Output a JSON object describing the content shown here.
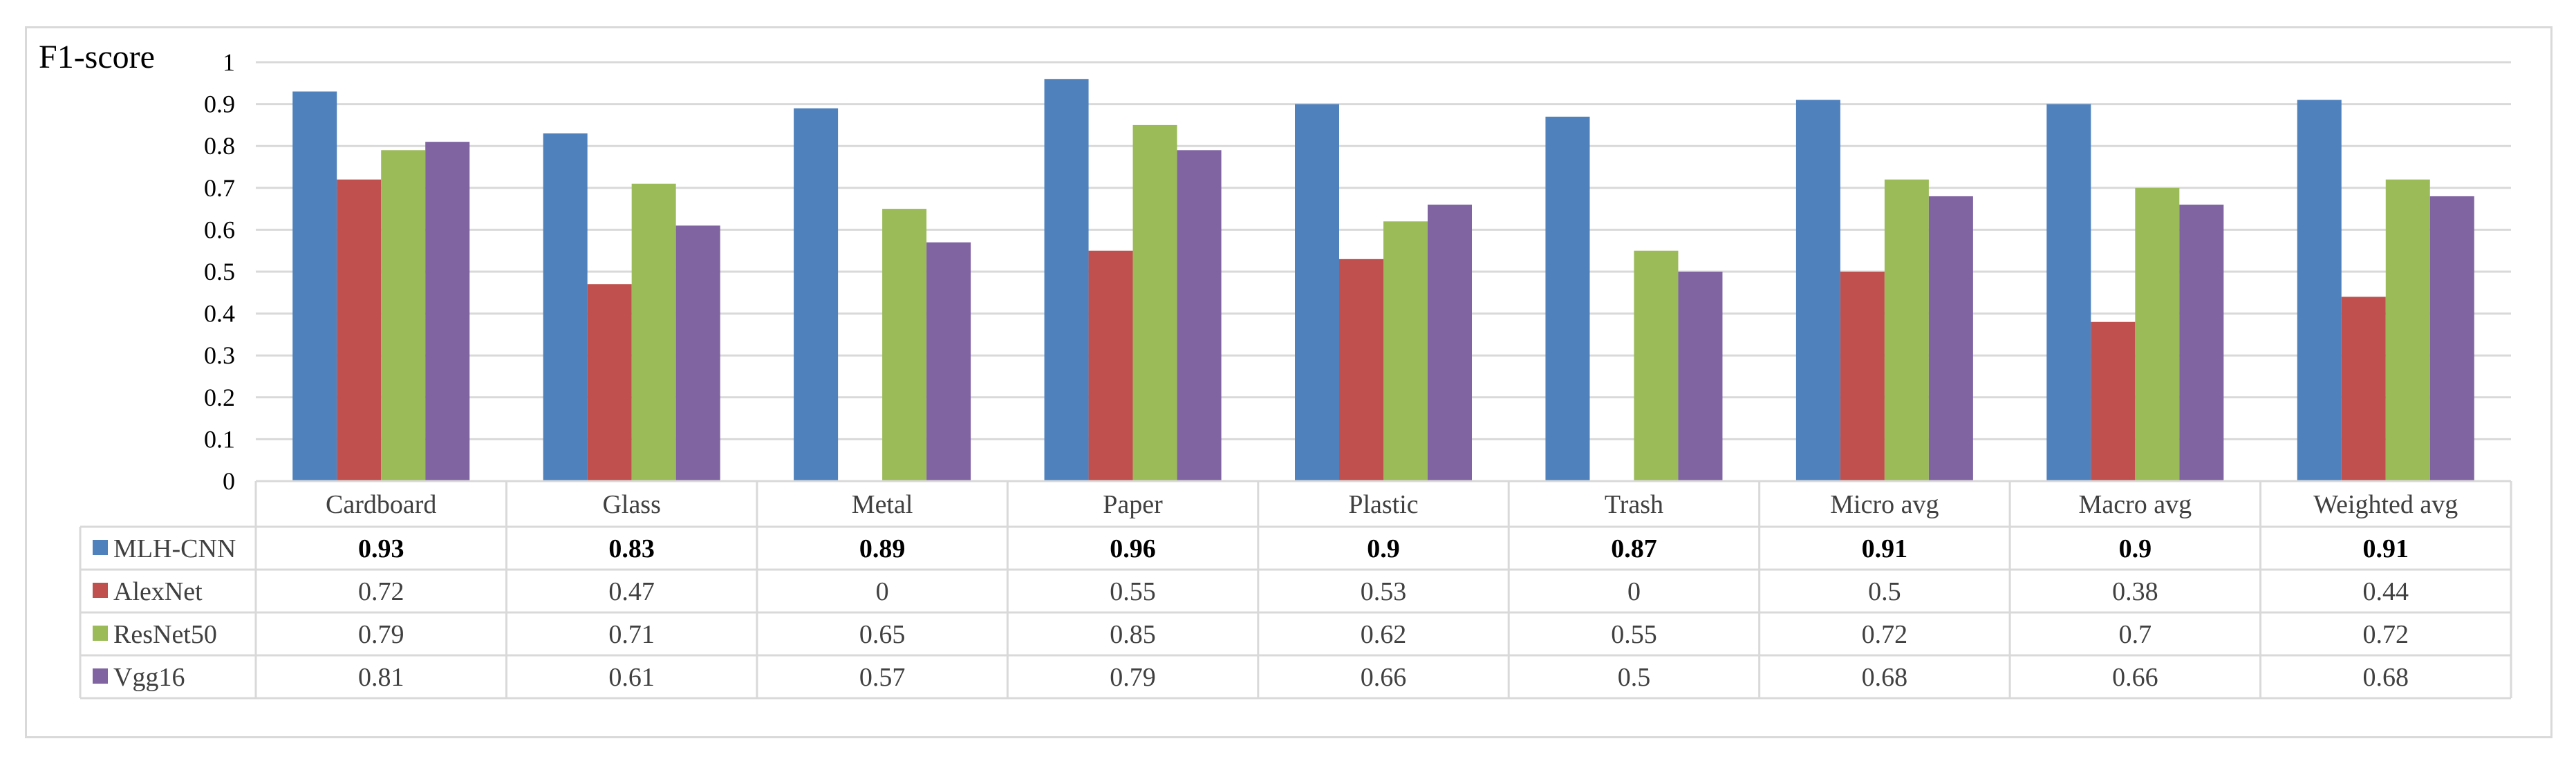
{
  "chart_data": {
    "type": "bar",
    "title": "F1-score",
    "xlabel": "",
    "ylabel": "",
    "ylim": [
      0,
      1
    ],
    "yticks": [
      "0",
      "0.1",
      "0.2",
      "0.3",
      "0.4",
      "0.5",
      "0.6",
      "0.7",
      "0.8",
      "0.9",
      "1"
    ],
    "grid": true,
    "legend": "data-table-left",
    "categories": [
      "Cardboard",
      "Glass",
      "Metal",
      "Paper",
      "Plastic",
      "Trash",
      "Micro avg",
      "Macro avg",
      "Weighted avg"
    ],
    "series": [
      {
        "name": "MLH-CNN",
        "color": "#4f81bd",
        "bold": true,
        "values": [
          0.93,
          0.83,
          0.89,
          0.96,
          0.9,
          0.87,
          0.91,
          0.9,
          0.91
        ],
        "labels": [
          "0.93",
          "0.83",
          "0.89",
          "0.96",
          "0.9",
          "0.87",
          "0.91",
          "0.9",
          "0.91"
        ]
      },
      {
        "name": "AlexNet",
        "color": "#c0504d",
        "bold": false,
        "values": [
          0.72,
          0.47,
          0,
          0.55,
          0.53,
          0,
          0.5,
          0.38,
          0.44
        ],
        "labels": [
          "0.72",
          "0.47",
          "0",
          "0.55",
          "0.53",
          "0",
          "0.5",
          "0.38",
          "0.44"
        ]
      },
      {
        "name": "ResNet50",
        "color": "#9bbb59",
        "bold": false,
        "values": [
          0.79,
          0.71,
          0.65,
          0.85,
          0.62,
          0.55,
          0.72,
          0.7,
          0.72
        ],
        "labels": [
          "0.79",
          "0.71",
          "0.65",
          "0.85",
          "0.62",
          "0.55",
          "0.72",
          "0.7",
          "0.72"
        ]
      },
      {
        "name": "Vgg16",
        "color": "#8064a2",
        "bold": false,
        "values": [
          0.81,
          0.61,
          0.57,
          0.79,
          0.66,
          0.5,
          0.68,
          0.66,
          0.68
        ],
        "labels": [
          "0.81",
          "0.61",
          "0.57",
          "0.79",
          "0.66",
          "0.5",
          "0.68",
          "0.66",
          "0.68"
        ]
      }
    ]
  }
}
